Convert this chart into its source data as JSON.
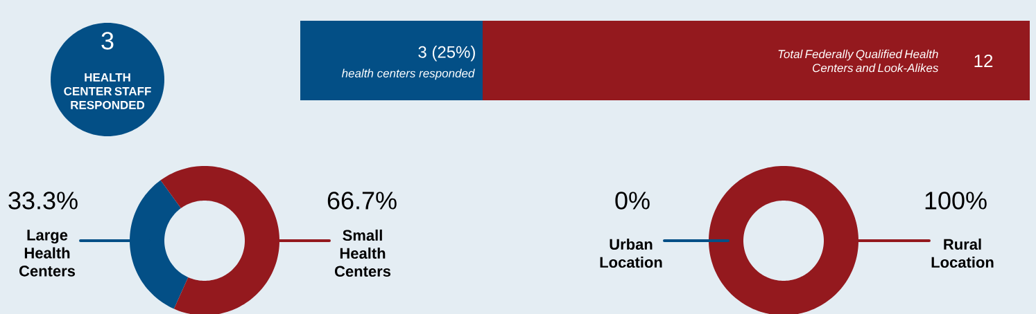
{
  "chart_data": [
    {
      "type": "other",
      "title": "3",
      "subtitle": "HEALTH CENTER STAFF RESPONDED"
    },
    {
      "type": "bar",
      "orientation": "horizontal",
      "stacked": true,
      "categories": [
        null
      ],
      "series": [
        {
          "color": "#034f86",
          "values": [
            3
          ],
          "value_labels": [
            "3 (25%)"
          ]
        },
        {
          "color": "#94191e",
          "values": [
            9
          ]
        }
      ],
      "totals": [
        "12"
      ],
      "annotations": [
        "health centers responded",
        "Total Federally Qualified Health Centers and Look-Alikes"
      ]
    },
    {
      "type": "donut",
      "categories": [
        "Large Health Centers",
        "Small Health Centers"
      ],
      "values": [
        33.3,
        66.7
      ],
      "colors": [
        "#034f86",
        "#94191e"
      ],
      "value_labels": [
        "33.3%",
        "66.7%"
      ]
    },
    {
      "type": "donut",
      "categories": [
        "Urban Location",
        "Rural Location"
      ],
      "values": [
        0,
        100
      ],
      "colors": [
        "#034f86",
        "#94191e"
      ],
      "value_labels": [
        "0%",
        "100%"
      ]
    }
  ]
}
